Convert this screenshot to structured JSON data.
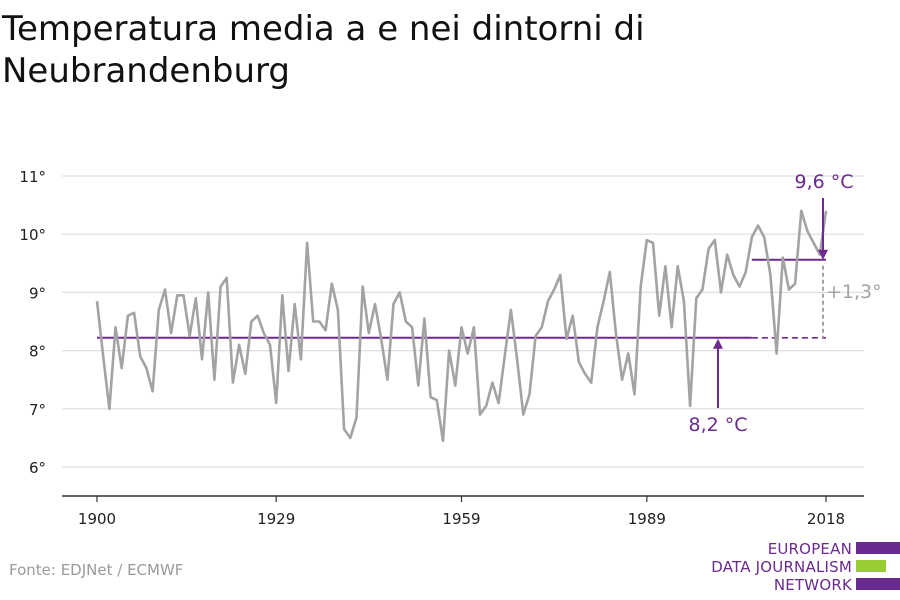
{
  "title": {
    "line1": "Temperatura media a e nei dintorni di",
    "line2": "Neubrandenburg"
  },
  "source": "Fonte: EDJNet / ECMWF",
  "logo": {
    "lines": [
      "EUROPEAN",
      "DATA JOURNALISM",
      "NETWORK"
    ],
    "colors": {
      "purple": "#6b2a8f",
      "green": "#9acd32"
    }
  },
  "colors": {
    "series": "#a3a3a3",
    "mean": "#6b2a8f",
    "delta": "#a3a3a3",
    "grid": "#dddddd",
    "axis": "#333333"
  },
  "chart_data": {
    "type": "line",
    "title": "Temperatura media a e nei dintorni di Neubrandenburg",
    "xlabel": "",
    "ylabel": "",
    "xlim": [
      1900,
      2018
    ],
    "ylim": [
      6,
      11
    ],
    "x_ticks": [
      1900,
      1929,
      1959,
      1989,
      2018
    ],
    "y_ticks": [
      6,
      7,
      8,
      9,
      10,
      11
    ],
    "y_tick_labels": [
      "6°",
      "7°",
      "8°",
      "9°",
      "10°",
      "11°"
    ],
    "grid": true,
    "series": [
      {
        "x": [
          1900,
          1901,
          1902,
          1903,
          1904,
          1905,
          1906,
          1907,
          1908,
          1909,
          1910,
          1911,
          1912,
          1913,
          1914,
          1915,
          1916,
          1917,
          1918,
          1919,
          1920,
          1921,
          1922,
          1923,
          1924,
          1925,
          1926,
          1927,
          1928,
          1929,
          1930,
          1931,
          1932,
          1933,
          1934,
          1935,
          1936,
          1937,
          1938,
          1939,
          1940,
          1941,
          1942,
          1943,
          1944,
          1945,
          1946,
          1947,
          1948,
          1949,
          1950,
          1951,
          1952,
          1953,
          1954,
          1955,
          1956,
          1957,
          1958,
          1959,
          1960,
          1961,
          1962,
          1963,
          1964,
          1965,
          1966,
          1967,
          1968,
          1969,
          1970,
          1971,
          1972,
          1973,
          1974,
          1975,
          1976,
          1977,
          1978,
          1979,
          1980,
          1981,
          1982,
          1983,
          1984,
          1985,
          1986,
          1987,
          1988,
          1989,
          1990,
          1991,
          1992,
          1993,
          1994,
          1995,
          1996,
          1997,
          1998,
          1999,
          2000,
          2001,
          2002,
          2003,
          2004,
          2005,
          2006,
          2007,
          2008,
          2009,
          2010,
          2011,
          2012,
          2013,
          2014,
          2015,
          2016,
          2017,
          2018
        ],
        "values": [
          8.85,
          7.9,
          7.0,
          8.4,
          7.7,
          8.6,
          8.65,
          7.9,
          7.7,
          7.3,
          8.7,
          9.05,
          8.3,
          8.95,
          8.95,
          8.25,
          8.9,
          7.85,
          9.0,
          7.5,
          9.1,
          9.25,
          7.45,
          8.1,
          7.6,
          8.5,
          8.6,
          8.3,
          8.1,
          7.1,
          8.95,
          7.65,
          8.8,
          7.85,
          9.85,
          8.5,
          8.5,
          8.35,
          9.15,
          8.7,
          6.65,
          6.5,
          6.85,
          9.1,
          8.3,
          8.8,
          8.2,
          7.5,
          8.8,
          9.0,
          8.5,
          8.4,
          7.4,
          8.55,
          7.2,
          7.15,
          6.45,
          8.0,
          7.4,
          8.4,
          7.95,
          8.4,
          6.9,
          7.05,
          7.45,
          7.1,
          7.9,
          8.7,
          7.85,
          6.9,
          7.25,
          8.25,
          8.4,
          8.85,
          9.05,
          9.3,
          8.2,
          8.6,
          7.8,
          7.6,
          7.45,
          8.4,
          8.85,
          9.35,
          8.3,
          7.5,
          7.95,
          7.25,
          9.1,
          9.9,
          9.85,
          8.6,
          9.45,
          8.4,
          9.45,
          8.85,
          7.05,
          8.9,
          9.05,
          9.75,
          9.9,
          9.0,
          9.65,
          9.3,
          9.1,
          9.35,
          9.95,
          10.15,
          9.95,
          9.3,
          7.95,
          9.6,
          9.05,
          9.15,
          10.4,
          10.05,
          9.85,
          9.65,
          10.4
        ]
      }
    ],
    "reference_lines": [
      {
        "label": "8,2 °C",
        "value": 8.22,
        "solid_from": 1900,
        "solid_to": 2006,
        "dashed_to": 2018
      },
      {
        "label": "9,6 °C",
        "value": 9.56,
        "solid_from": 2006,
        "solid_to": 2018
      }
    ],
    "annotations": {
      "mean_old": "8,2 °C",
      "mean_new": "9,6 °C",
      "delta": "+1,3°"
    }
  }
}
